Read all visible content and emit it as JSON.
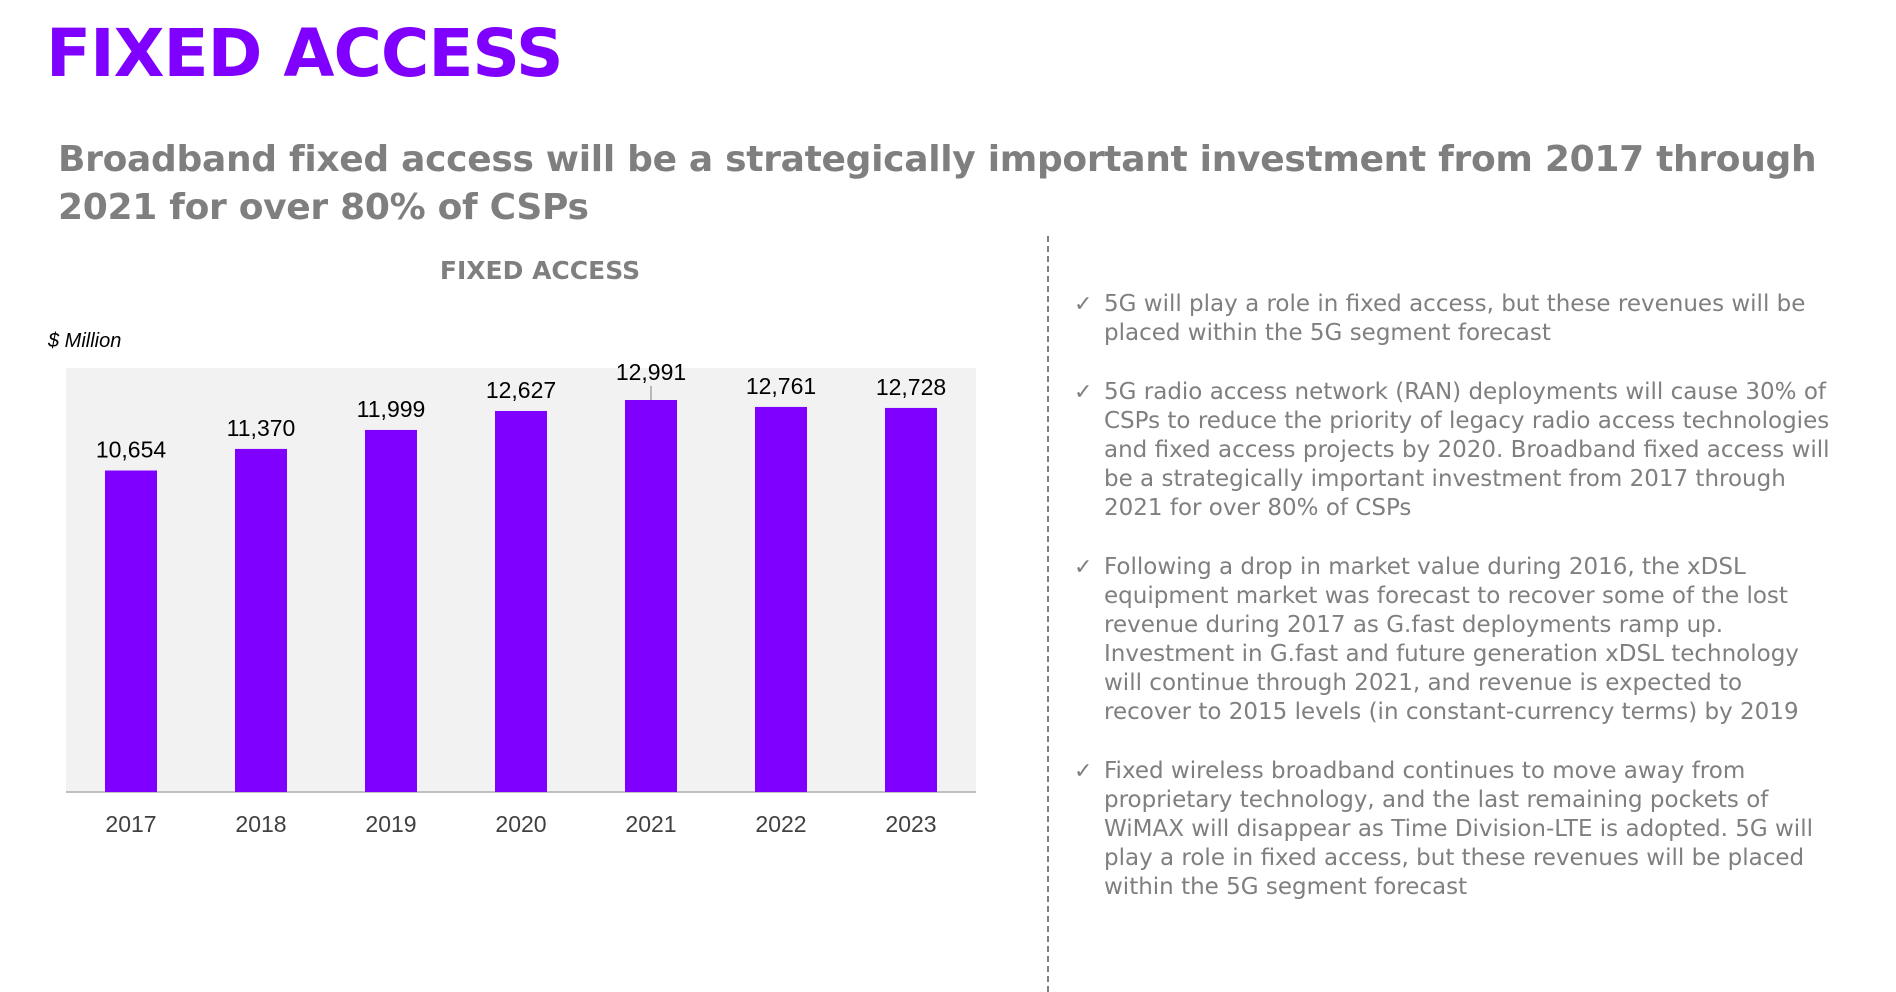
{
  "page": {
    "title": "FIXED ACCESS",
    "subtitle": "Broadband fixed access will be a strategically important investment from 2017 through 2021 for over 80% of CSPs"
  },
  "colors": {
    "accent": "#7f00ff",
    "subtitle": "#7f7f7f",
    "chart_bg": "#f2f2f2",
    "text_gray": "#7f7f7f"
  },
  "chart_data": {
    "type": "bar",
    "title": "FIXED ACCESS",
    "units_label": "$ Million",
    "categories": [
      "2017",
      "2018",
      "2019",
      "2020",
      "2021",
      "2022",
      "2023"
    ],
    "values": [
      10654,
      11370,
      11999,
      12627,
      12991,
      12761,
      12728
    ],
    "value_labels": [
      "10,654",
      "11,370",
      "11,999",
      "12,627",
      "12,991",
      "12,761",
      "12,728"
    ],
    "ylim": [
      0,
      14000
    ],
    "grid": false,
    "bar_color": "#7f00ff"
  },
  "bullets": [
    {
      "icon": "check-icon",
      "text": "5G will play a role in fixed access, but these revenues will be placed within the 5G segment forecast"
    },
    {
      "icon": "check-icon",
      "text": "5G radio access network (RAN) deployments will cause 30% of CSPs to reduce the priority of legacy radio access technologies and fixed access projects by 2020. Broadband fixed access will be a strategically important investment from 2017 through 2021 for over 80% of CSPs"
    },
    {
      "icon": "check-icon",
      "text": "Following a drop in market value during 2016, the xDSL equipment market was forecast to recover some of the lost revenue during 2017 as G.fast deployments ramp up. Investment in G.fast and future generation xDSL technology will continue through 2021, and revenue is expected to recover to 2015 levels (in constant-currency terms) by 2019"
    },
    {
      "icon": "check-icon",
      "text": "Fixed wireless broadband continues to move away from proprietary technology, and the last remaining pockets of WiMAX will disappear as Time Division-LTE is adopted. 5G will play a role in fixed access, but these revenues will be placed within the 5G segment forecast"
    }
  ]
}
